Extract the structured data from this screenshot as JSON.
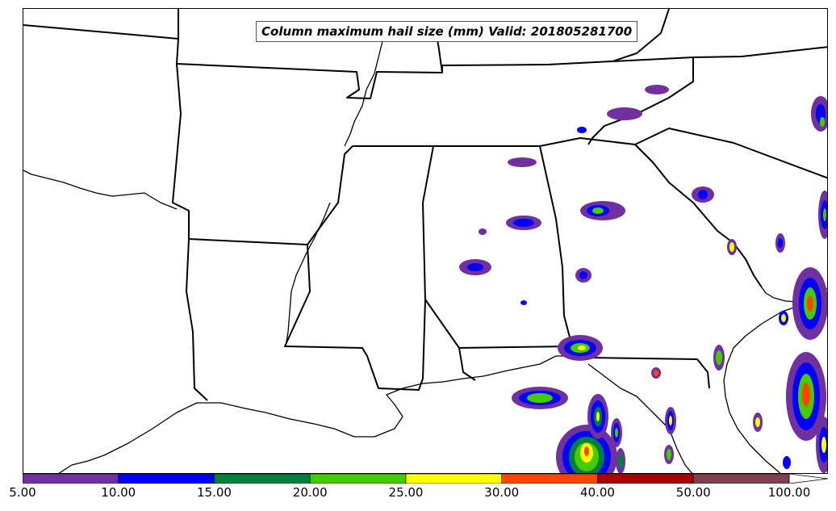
{
  "title": "Column maximum hail size (mm) Valid: 201805281700",
  "colorbar": {
    "bins": [
      {
        "label": "5.00",
        "color": "#7030a0"
      },
      {
        "label": "10.00",
        "color": "#0000ff"
      },
      {
        "label": "15.00",
        "color": "#008040"
      },
      {
        "label": "20.00",
        "color": "#44cc00"
      },
      {
        "label": "25.00",
        "color": "#ffff00"
      },
      {
        "label": "30.00",
        "color": "#ff4400"
      },
      {
        "label": "40.00",
        "color": "#aa0000"
      },
      {
        "label": "50.00",
        "color": "#804050"
      }
    ],
    "end_label": "100.00"
  }
}
